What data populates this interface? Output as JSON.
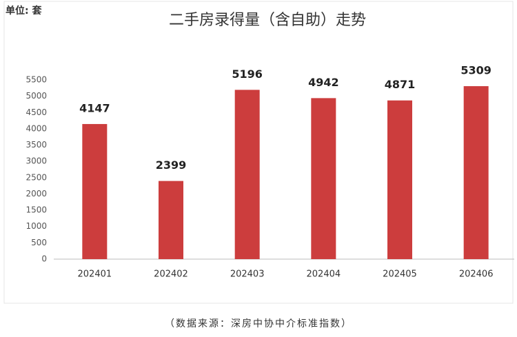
{
  "chart_data": {
    "type": "bar",
    "title": "二手房录得量（含自助）走势",
    "unit_label": "单位: 套",
    "source": "（数据来源：深房中协中介标准指数）",
    "categories": [
      "202401",
      "202402",
      "202403",
      "202404",
      "202405",
      "202406"
    ],
    "values": [
      4147,
      2399,
      5196,
      4942,
      4871,
      5309
    ],
    "color": "#cc3d3d",
    "ylim": [
      0,
      5500
    ],
    "yticks": [
      0,
      500,
      1000,
      1500,
      2000,
      2500,
      3000,
      3500,
      4000,
      4500,
      5000,
      5500
    ],
    "grid": false
  }
}
